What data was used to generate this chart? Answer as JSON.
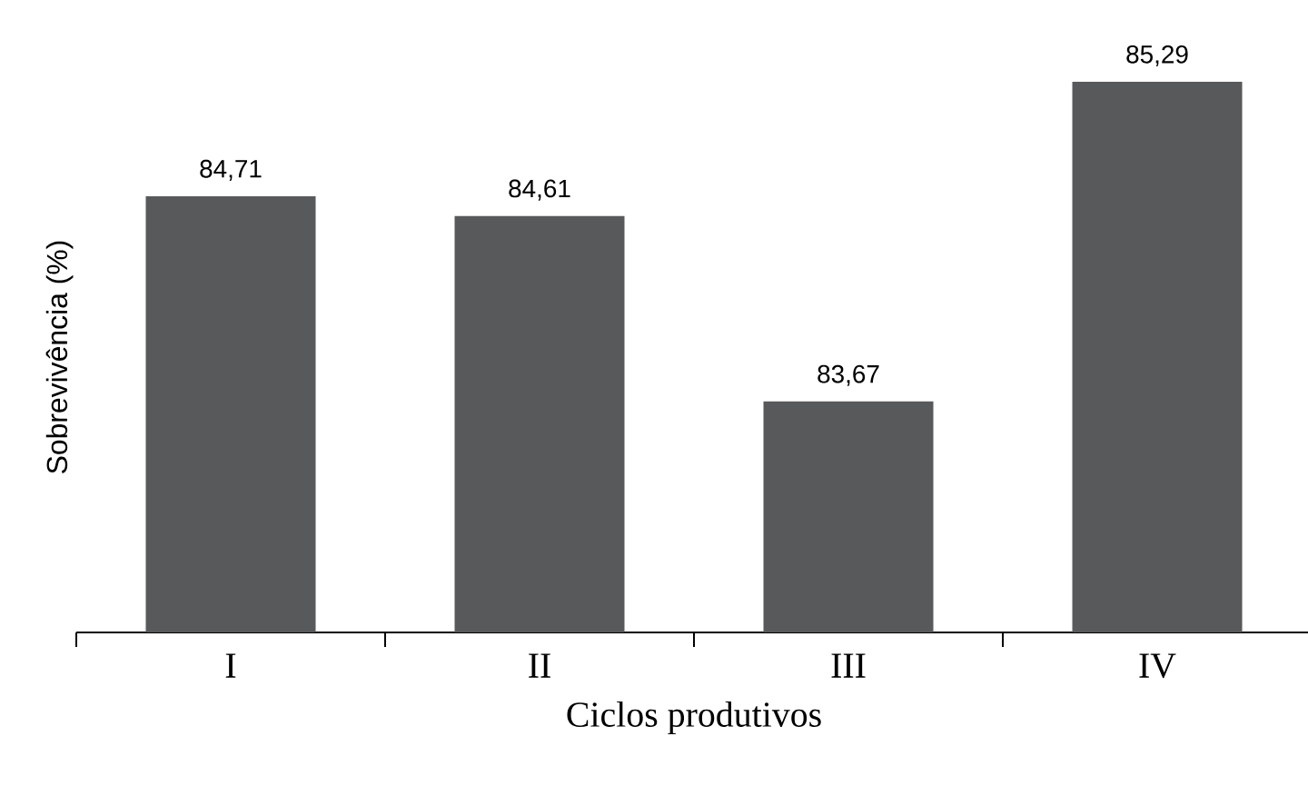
{
  "chart_data": {
    "type": "bar",
    "xlabel": "Ciclos produtivos",
    "ylabel": "Sobrevivência (%)",
    "categories": [
      "I",
      "II",
      "III",
      "IV"
    ],
    "values": [
      84.71,
      84.61,
      83.67,
      85.29
    ],
    "value_labels": [
      "84,71",
      "84,61",
      "83,67",
      "85,29"
    ],
    "color": "#58595b",
    "ylim": [
      82.5,
      85.29
    ],
    "tick_labels": "x"
  }
}
